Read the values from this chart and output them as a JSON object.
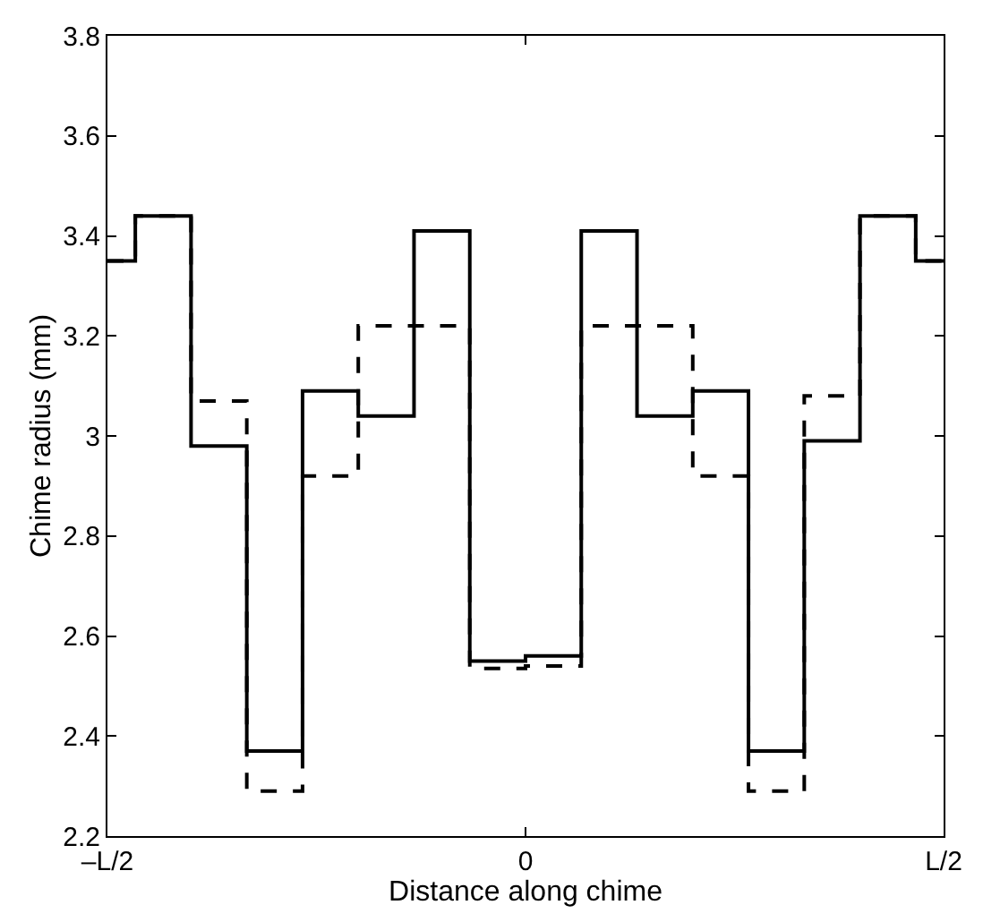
{
  "chart_data": {
    "type": "step",
    "xlabel": "Distance along chime",
    "ylabel": "Chime radius (mm)",
    "categories": [
      "–L/2",
      null,
      null,
      null,
      null,
      null,
      null,
      null,
      null,
      null,
      null,
      null,
      null,
      null,
      null,
      "0",
      null,
      null,
      null,
      null,
      null,
      null,
      null,
      null,
      null,
      null,
      null,
      null,
      null,
      null,
      "L/2"
    ],
    "series": [
      {
        "color": "#000000",
        "line_style": "solid",
        "values": [
          3.35,
          3.44,
          3.44,
          2.98,
          2.98,
          2.37,
          2.37,
          3.09,
          3.09,
          3.04,
          3.04,
          3.41,
          3.41,
          2.55,
          2.55,
          2.56,
          2.56,
          3.41,
          3.41,
          3.04,
          3.04,
          3.09,
          3.09,
          2.37,
          2.37,
          2.99,
          2.99,
          3.44,
          3.44,
          3.35,
          3.35
        ]
      },
      {
        "color": "#000000",
        "line_style": "dashed",
        "values": [
          3.35,
          3.44,
          3.44,
          3.07,
          3.07,
          2.29,
          2.29,
          2.92,
          2.92,
          3.22,
          3.22,
          3.22,
          3.22,
          2.535,
          2.535,
          2.54,
          2.54,
          3.22,
          3.22,
          3.22,
          3.22,
          2.92,
          2.92,
          2.29,
          2.29,
          3.08,
          3.08,
          3.44,
          3.44,
          3.35,
          3.35
        ]
      }
    ],
    "ylim": [
      2.2,
      3.8
    ],
    "yticks": [
      2.2,
      2.4,
      2.6,
      2.8,
      3,
      3.2,
      3.4,
      3.6,
      3.8
    ],
    "grid": false,
    "marker": "none"
  }
}
